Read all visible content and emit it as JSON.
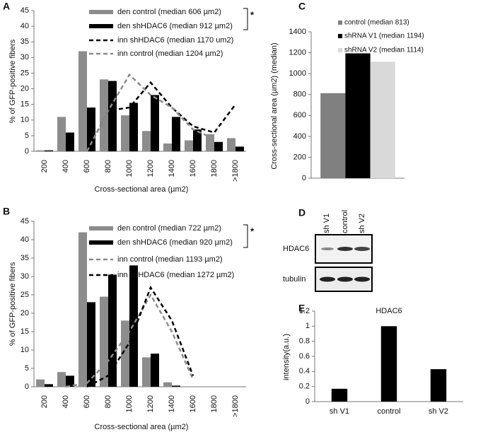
{
  "chart_data": [
    {
      "panel": "A",
      "type": "bar",
      "categories": [
        "200",
        "400",
        "600",
        "800",
        "1000",
        "1200",
        "1400",
        "1600",
        "1800",
        ">1800"
      ],
      "series": [
        {
          "name": "den control (median 606 µm2)",
          "color": "#8c8c8c",
          "style": "bar",
          "values": [
            0.3,
            11,
            32,
            23,
            11.5,
            6.5,
            2.5,
            3.5,
            5.5,
            4.2
          ]
        },
        {
          "name": "den shHDAC6 (median 912 µm2)",
          "color": "#000000",
          "style": "bar",
          "values": [
            0.3,
            6,
            14,
            22.5,
            15.5,
            18,
            11,
            7,
            3,
            1.5
          ]
        },
        {
          "name": "inn shHDAC6 (median 1170 um2)",
          "color": "#000000",
          "style": "dashed",
          "values": [
            null,
            null,
            0,
            13,
            14,
            22,
            14,
            8,
            6,
            15
          ]
        },
        {
          "name": "inn control (median 1204 µm2)",
          "color": "#8c8c8c",
          "style": "dashed",
          "values": [
            null,
            null,
            0,
            13,
            24.5,
            18,
            14,
            7,
            4,
            null
          ]
        }
      ],
      "ylim": [
        0,
        45
      ],
      "yticks": [
        0,
        5,
        10,
        15,
        20,
        25,
        30,
        35,
        40,
        45
      ],
      "x_label": "Cross-sectional area (µm2)",
      "y_label": "% of GFP-positive fibers",
      "annotation": "*"
    },
    {
      "panel": "B",
      "type": "bar",
      "categories": [
        "200",
        "400",
        "600",
        "800",
        "1000",
        "1200",
        "1400",
        "1600",
        "1800",
        ">1800"
      ],
      "series": [
        {
          "name": "den control (median 722 µm2)",
          "color": "#8c8c8c",
          "style": "bar",
          "values": [
            2,
            4,
            42,
            24.5,
            18,
            8,
            1.2,
            0,
            0,
            0
          ]
        },
        {
          "name": "den shHDAC6 (median 920 µm2)",
          "color": "#000000",
          "style": "bar",
          "values": [
            0.7,
            3,
            23,
            30.5,
            33,
            9,
            0.3,
            0,
            0,
            0
          ]
        },
        {
          "name": "inn control (median 1193 µm2)",
          "color": "#8c8c8c",
          "style": "dashed",
          "values": [
            null,
            0,
            1,
            7,
            15,
            25,
            15,
            2,
            null,
            null
          ]
        },
        {
          "name": "inn shHDAC6 (median 1272 µm2)",
          "color": "#000000",
          "style": "dashed",
          "values": [
            null,
            null,
            0,
            3,
            12,
            27,
            18,
            3,
            null,
            null
          ]
        }
      ],
      "ylim": [
        0,
        45
      ],
      "yticks": [
        0,
        5,
        10,
        15,
        20,
        25,
        30,
        35,
        40,
        45
      ],
      "x_label": "Cross-sectional area (µm2)",
      "y_label": "% of GFP-positive fibers",
      "annotation": "*"
    },
    {
      "panel": "C",
      "type": "bar",
      "categories": [
        null
      ],
      "series": [
        {
          "name": "control (median 813)",
          "color": "#808080",
          "style": "bar",
          "values": [
            813
          ]
        },
        {
          "name": "shRNA V1 (median 1194)",
          "color": "#000000",
          "style": "bar",
          "values": [
            1194
          ]
        },
        {
          "name": "shRNA V2 (median 1114)",
          "color": "#d9d9d9",
          "style": "bar",
          "values": [
            1114
          ]
        }
      ],
      "ylim": [
        0,
        1400
      ],
      "yticks": [
        0,
        200,
        400,
        600,
        800,
        1000,
        1200,
        1400
      ],
      "y_label": "Cross-sectional area (µm2) (median)"
    },
    {
      "panel": "E",
      "type": "bar",
      "title": "HDAC6",
      "categories": [
        "sh V1",
        "control",
        "sh V2"
      ],
      "values": [
        0.17,
        1,
        0.43
      ],
      "color": "#000000",
      "ylim": [
        0,
        1.2
      ],
      "yticks": [
        0,
        0.2,
        0.4,
        0.6,
        0.8,
        1,
        1.2
      ],
      "y_label": "intensity(a.u.)"
    }
  ],
  "blot": {
    "panel": "D",
    "lanes": [
      "sh V1",
      "control",
      "sh V2"
    ],
    "rows": [
      "HDAC6",
      "tubulin"
    ]
  }
}
